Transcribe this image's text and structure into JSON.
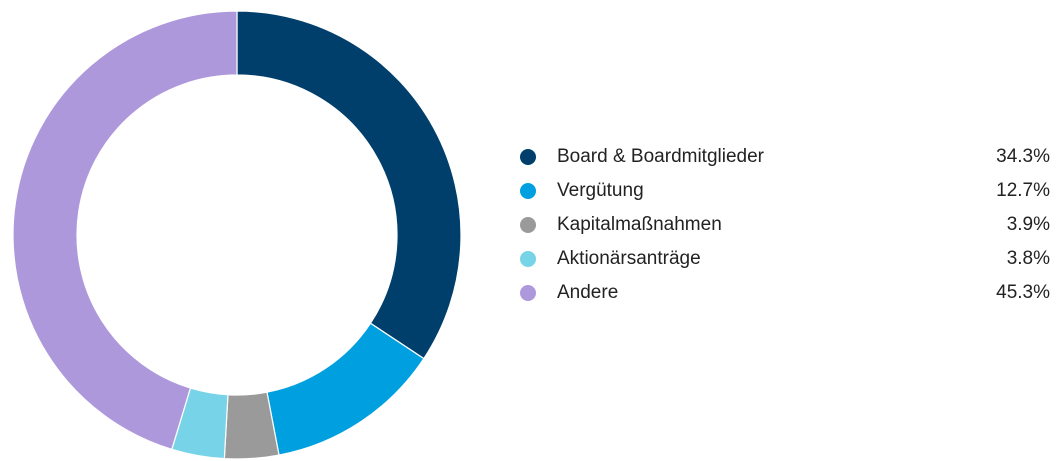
{
  "chart_data": {
    "type": "pie",
    "categories": [
      "Board & Boardmitglieder",
      "Vergütung",
      "Kapitalmaßnahmen",
      "Aktionärsanträge",
      "Andere"
    ],
    "values": [
      34.3,
      12.7,
      3.9,
      3.8,
      45.3
    ],
    "value_labels": [
      "34.3%",
      "12.7%",
      "3.9%",
      "3.8%",
      "45.3%"
    ],
    "colors": [
      "#003f6b",
      "#00a0e0",
      "#9a9a9a",
      "#77d3e8",
      "#ae98dc"
    ],
    "donut": true,
    "legend": "right"
  }
}
